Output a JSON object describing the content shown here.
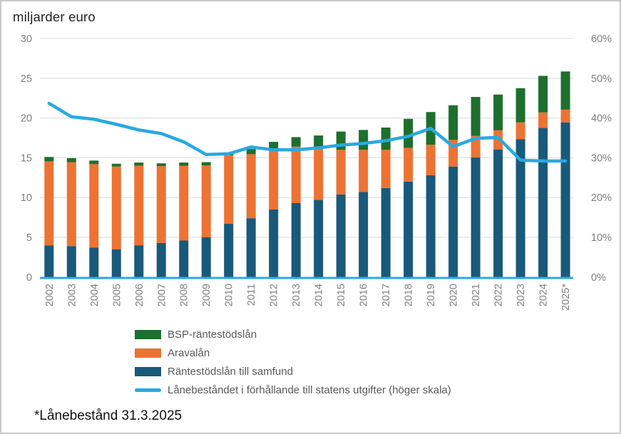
{
  "footnote": "*Lånebestånd 31.3.2025",
  "colors": {
    "bar_blue": "#19597A",
    "bar_orange": "#EC7333",
    "bar_green": "#1D6F2D",
    "line_blue": "#29A9E1",
    "gridline": "#D9D9D9",
    "axis_text": "#7F7F7F",
    "legend_text": "#595959",
    "title_text": "#1F1F1F"
  },
  "chart_data": {
    "type": "bar",
    "subtype": "stacked-bars-with-line",
    "title": "miljarder euro",
    "categories": [
      "2002",
      "2003",
      "2004",
      "2005",
      "2006",
      "2007",
      "2008",
      "2009",
      "2010",
      "2011",
      "2012",
      "2013",
      "2014",
      "2015",
      "2016",
      "2017",
      "2018",
      "2019",
      "2020",
      "2021",
      "2022",
      "2023",
      "2024",
      "2025*"
    ],
    "series": [
      {
        "name": "Räntestödslån till samfund",
        "type": "bar",
        "color": "#19597A",
        "values": [
          4.0,
          3.9,
          3.7,
          3.5,
          4.0,
          4.3,
          4.6,
          5.0,
          6.7,
          7.4,
          8.5,
          9.3,
          9.7,
          10.4,
          10.7,
          11.2,
          12.0,
          12.8,
          13.9,
          15.05,
          16.05,
          17.35,
          18.75,
          19.45
        ]
      },
      {
        "name": "Aravalån",
        "type": "bar",
        "color": "#EC7333",
        "values": [
          10.55,
          10.55,
          10.5,
          10.4,
          10.0,
          9.65,
          9.4,
          9.05,
          8.6,
          8.05,
          7.5,
          7.1,
          6.6,
          5.6,
          5.3,
          4.8,
          4.25,
          3.85,
          3.35,
          2.7,
          2.4,
          2.1,
          1.95,
          1.6
        ]
      },
      {
        "name": "BSP-räntestödslån",
        "type": "bar",
        "color": "#1D6F2D",
        "values": [
          0.55,
          0.5,
          0.45,
          0.35,
          0.4,
          0.35,
          0.4,
          0.4,
          0.2,
          0.65,
          1.0,
          1.2,
          1.5,
          2.3,
          2.5,
          2.8,
          3.65,
          4.1,
          4.35,
          4.9,
          4.5,
          4.3,
          4.6,
          4.8
        ]
      }
    ],
    "line_series": {
      "name": "Lånebeståndet i förhållande till statens utgifter (höger skala)",
      "type": "line",
      "color": "#29A9E1",
      "axis": "right",
      "values_pct": [
        43.7,
        40.3,
        39.7,
        38.4,
        37.0,
        36.1,
        34.0,
        30.8,
        31.0,
        32.7,
        32.0,
        32.0,
        32.5,
        33.2,
        33.6,
        34.3,
        35.4,
        37.4,
        32.8,
        34.9,
        35.1,
        29.4,
        29.2,
        29.2
      ]
    },
    "left_axis": {
      "title": "miljarder euro",
      "min": 0,
      "max": 30,
      "step": 5,
      "ticks": [
        "30",
        "25",
        "20",
        "15",
        "10",
        "5",
        "0"
      ]
    },
    "right_axis": {
      "min": 0,
      "max": 60,
      "step": 10,
      "ticks": [
        "60%",
        "50%",
        "40%",
        "30%",
        "20%",
        "10%",
        "0%"
      ]
    },
    "layout_hints": {
      "grid": "horizontal",
      "legend_position": "bottom-left",
      "legend_order": [
        "BSP-räntestödslån",
        "Aravalån",
        "Räntestödslån till samfund",
        "Lånebeståndet i förhållande till statens utgifter (höger skala)"
      ],
      "x_labels_rotated_deg": 90,
      "x_axis_line_color": "#29A9E1"
    }
  }
}
